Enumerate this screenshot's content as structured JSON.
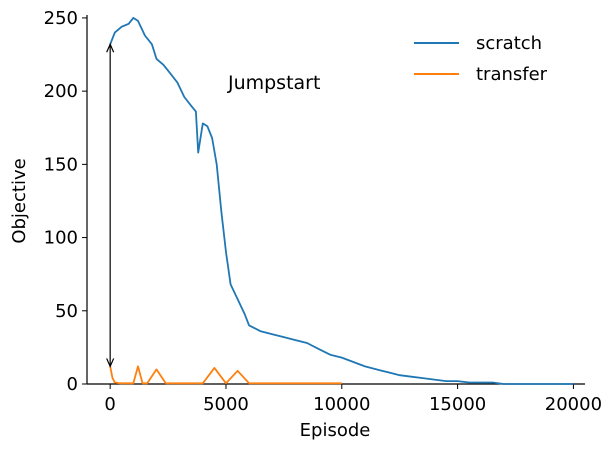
{
  "chart_data": {
    "type": "line",
    "title": "",
    "xlabel": "Episode",
    "ylabel": "Objective",
    "xlim": [
      -1000,
      20500
    ],
    "ylim": [
      0,
      252
    ],
    "xticks": [
      0,
      5000,
      10000,
      15000,
      20000
    ],
    "yticks": [
      0,
      50,
      100,
      150,
      200,
      250
    ],
    "grid": false,
    "legend": "top-right",
    "series": [
      {
        "name": "scratch",
        "color": "#1f77b4",
        "x": [
          0,
          200,
          500,
          800,
          1000,
          1200,
          1500,
          1800,
          2000,
          2300,
          2600,
          2900,
          3200,
          3500,
          3700,
          3800,
          4000,
          4200,
          4400,
          4600,
          4800,
          5000,
          5200,
          5500,
          5800,
          6000,
          6500,
          7000,
          7500,
          8000,
          8500,
          9000,
          9500,
          10000,
          10500,
          11000,
          11500,
          12000,
          12500,
          13000,
          13500,
          14000,
          14500,
          15000,
          15500,
          16000,
          16500,
          17000,
          18000,
          19000,
          20000
        ],
        "y": [
          232,
          240,
          244,
          246,
          250,
          248,
          238,
          232,
          222,
          218,
          212,
          206,
          196,
          190,
          186,
          158,
          178,
          176,
          168,
          150,
          118,
          90,
          68,
          58,
          48,
          40,
          36,
          34,
          32,
          30,
          28,
          24,
          20,
          18,
          15,
          12,
          10,
          8,
          6,
          5,
          4,
          3,
          2,
          2,
          1,
          1,
          1,
          0,
          0,
          0,
          0
        ]
      },
      {
        "name": "transfer",
        "color": "#ff7f0e",
        "x": [
          0,
          100,
          200,
          400,
          1000,
          1200,
          1400,
          1600,
          2000,
          2400,
          2800,
          3000,
          4000,
          4500,
          5000,
          5500,
          6000,
          7000,
          8000,
          9000,
          10000
        ],
        "y": [
          12,
          4,
          1,
          0.5,
          0.5,
          12,
          0.5,
          0.5,
          10,
          0.5,
          0.5,
          0.5,
          0.5,
          11,
          0.5,
          9,
          0.5,
          0.5,
          0.5,
          0.5,
          0.5
        ]
      }
    ],
    "annotations": [
      {
        "text": "Jumpstart",
        "x": 5000,
        "y": 200
      }
    ]
  }
}
